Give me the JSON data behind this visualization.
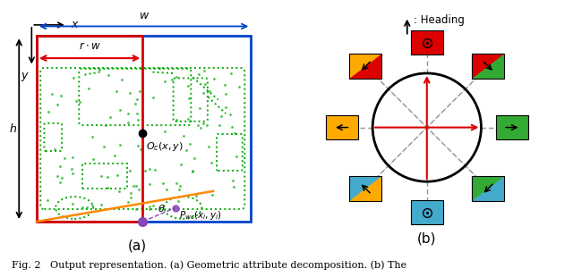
{
  "fig_width": 6.4,
  "fig_height": 3.1,
  "dpi": 100,
  "bg_color": "#ffffff",
  "caption": "Fig. 2   Output representation. (a) Geometric attribute decomposition. (b) The",
  "red": "#dd0000",
  "green": "#33aa33",
  "yellow": "#ffaa00",
  "blue_box": "#44aacc",
  "dark_blue": "#0044cc",
  "orange": "#ff8800",
  "purple": "#8844bb",
  "green_car": "#00aa00"
}
